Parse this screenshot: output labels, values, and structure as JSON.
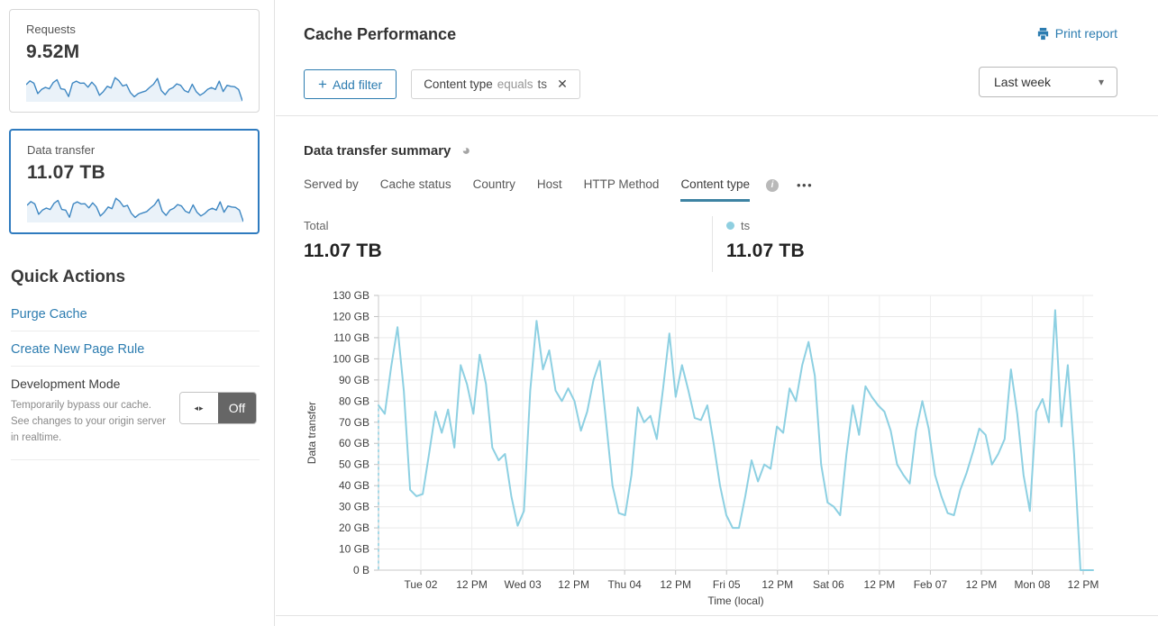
{
  "colors": {
    "accent_blue": "#2c7cb0",
    "selected_card_border": "#2f7bbf",
    "sparkline_line": "#3e87c2",
    "sparkline_fill": "#eaf2f9",
    "chart_line": "#8dd0e2",
    "tab_underline": "#3d83a3",
    "legend_dot": "#8fcfe0",
    "toggle_off_bg": "#666666"
  },
  "sidebar": {
    "cards": [
      {
        "label": "Requests",
        "value": "9.52M"
      },
      {
        "label": "Data transfer",
        "value": "11.07 TB"
      }
    ],
    "spark_values": [
      78,
      96,
      85,
      35,
      55,
      65,
      58,
      88,
      102,
      58,
      55,
      21,
      85,
      95,
      85,
      86,
      66,
      90,
      70,
      27,
      45,
      70,
      62,
      112,
      97,
      72,
      78,
      40,
      20,
      35,
      42,
      48,
      65,
      80,
      108,
      50,
      30,
      55,
      64,
      82,
      75,
      50,
      41,
      80,
      45,
      27,
      38,
      56,
      64,
      55,
      95,
      45,
      75,
      70,
      68,
      55,
      0
    ],
    "quick_actions": {
      "title": "Quick Actions",
      "links": [
        {
          "label": "Purge Cache"
        },
        {
          "label": "Create New Page Rule"
        }
      ],
      "dev_mode": {
        "title": "Development Mode",
        "description": "Temporarily bypass our cache. See changes to your origin server in realtime.",
        "toggle_glyph": "◂▸",
        "toggle_state": "Off"
      }
    }
  },
  "header": {
    "title": "Cache Performance",
    "print_label": "Print report",
    "filters": {
      "add_plus": "+",
      "add_label": "Add filter",
      "chip": {
        "field": "Content type",
        "operator": "equals",
        "value": "ts",
        "close_icon": "✕"
      }
    },
    "time_range": {
      "value": "Last week",
      "caret": "▾"
    }
  },
  "summary": {
    "title": "Data transfer summary",
    "pie_icon": "◕",
    "tabs": [
      "Served by",
      "Cache status",
      "Country",
      "Host",
      "HTTP Method",
      "Content type"
    ],
    "active_tab": "Content type",
    "info_icon": "i",
    "more_dots": "•••",
    "stats": {
      "total_label": "Total",
      "total_value": "11.07 TB",
      "series_label": "ts",
      "series_value": "11.07 TB"
    }
  },
  "chart_data": {
    "type": "line",
    "series_name": "ts",
    "unit": "GB",
    "ylabel": "Data transfer",
    "xlabel": "Time (local)",
    "y_max": 130,
    "y_tick_labels": [
      "0 B",
      "10 GB",
      "20 GB",
      "30 GB",
      "40 GB",
      "50 GB",
      "60 GB",
      "70 GB",
      "80 GB",
      "90 GB",
      "100 GB",
      "110 GB",
      "120 GB",
      "130 GB"
    ],
    "x_tick_labels": [
      "Tue 02",
      "12 PM",
      "Wed 03",
      "12 PM",
      "Thu 04",
      "12 PM",
      "Fri 05",
      "12 PM",
      "Sat 06",
      "12 PM",
      "Feb 07",
      "12 PM",
      "Mon 08",
      "12 PM"
    ],
    "leading_dashed_from_zero": true,
    "grid": true,
    "values_gb": [
      78,
      74,
      96,
      115,
      85,
      38,
      35,
      36,
      55,
      75,
      65,
      76,
      58,
      97,
      88,
      74,
      102,
      88,
      58,
      52,
      55,
      35,
      21,
      28,
      85,
      118,
      95,
      104,
      85,
      80,
      86,
      80,
      66,
      75,
      90,
      99,
      70,
      40,
      27,
      26,
      45,
      77,
      70,
      73,
      62,
      86,
      112,
      82,
      97,
      85,
      72,
      71,
      78,
      60,
      40,
      26,
      20,
      20,
      35,
      52,
      42,
      50,
      48,
      68,
      65,
      86,
      80,
      97,
      108,
      92,
      50,
      32,
      30,
      26,
      55,
      78,
      64,
      87,
      82,
      78,
      75,
      66,
      50,
      45,
      41,
      66,
      80,
      67,
      45,
      35,
      27,
      26,
      38,
      46,
      56,
      67,
      64,
      50,
      55,
      62,
      95,
      74,
      45,
      28,
      75,
      81,
      70,
      123,
      68,
      97,
      55,
      0,
      0,
      0
    ]
  }
}
